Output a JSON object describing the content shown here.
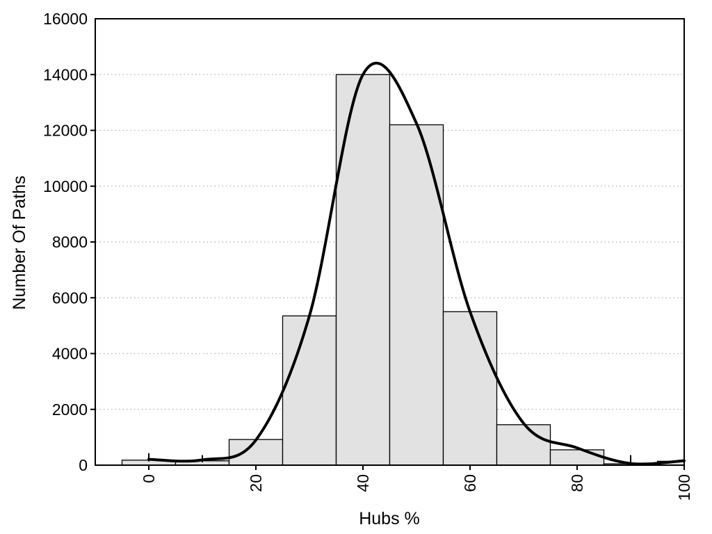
{
  "chart_data": {
    "type": "bar",
    "subtype": "histogram-with-density-curve",
    "title": "",
    "xlabel": "Hubs %",
    "ylabel": "Number Of Paths",
    "xlim": [
      -10,
      100
    ],
    "ylim": [
      0,
      16000
    ],
    "x_ticks": [
      0,
      20,
      40,
      60,
      80,
      100
    ],
    "x_tick_labels": [
      "0",
      "20",
      "40",
      "60",
      "80",
      "100"
    ],
    "x_tick_labels_rotated_deg": -90,
    "y_ticks": [
      0,
      2000,
      4000,
      6000,
      8000,
      10000,
      12000,
      14000,
      16000
    ],
    "y_tick_labels": [
      "0",
      "2000",
      "4000",
      "6000",
      "8000",
      "10000",
      "12000",
      "14000",
      "16000"
    ],
    "grid": "horizontal-dotted",
    "legend": "none",
    "bars": {
      "bin_width": 10,
      "centers": [
        0,
        10,
        20,
        30,
        40,
        50,
        60,
        70,
        80,
        90,
        100
      ],
      "counts": [
        180,
        155,
        920,
        5350,
        14000,
        12200,
        5500,
        1450,
        550,
        50,
        140
      ],
      "note": "last bin clipped at x=100 plot edge"
    },
    "series": [
      {
        "name": "smooth density curve",
        "type": "line",
        "x": [
          0,
          10,
          20,
          30,
          40,
          50,
          60,
          70,
          80,
          90,
          100
        ],
        "y": [
          210,
          190,
          900,
          5350,
          14000,
          12250,
          5500,
          1500,
          620,
          60,
          160
        ]
      }
    ],
    "point_markers": [
      {
        "x": 0,
        "top_value": 430
      },
      {
        "x": 10,
        "top_value": 360
      },
      {
        "x": 90,
        "top_value": 360
      }
    ],
    "colors": {
      "background": "#ffffff",
      "bar_fill": "#e2e2e2",
      "bar_edge": "#000000",
      "curve": "#000000",
      "gridline": "#b0b0b0",
      "frame": "#000000",
      "text": "#000000"
    }
  }
}
